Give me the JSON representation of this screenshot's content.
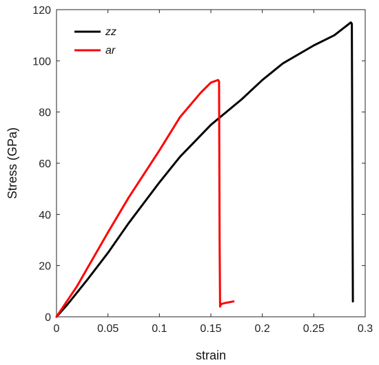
{
  "chart_data": {
    "type": "line",
    "title": "",
    "xlabel": "strain",
    "ylabel": "Stress (GPa)",
    "xlim": [
      0,
      0.3
    ],
    "ylim": [
      0,
      120
    ],
    "x_ticks": [
      0,
      0.05,
      0.1,
      0.15,
      0.2,
      0.25,
      0.3
    ],
    "x_tick_labels": [
      "0",
      "0.05",
      "0.1",
      "0.15",
      "0.2",
      "0.25",
      "0.3"
    ],
    "y_ticks": [
      0,
      20,
      40,
      60,
      80,
      100,
      120
    ],
    "y_tick_labels": [
      "0",
      "20",
      "40",
      "60",
      "80",
      "100",
      "120"
    ],
    "grid": false,
    "legend_position": "top-left",
    "series": [
      {
        "name": "zz",
        "color": "#000000",
        "x": [
          0,
          0.01,
          0.02,
          0.03,
          0.05,
          0.07,
          0.1,
          0.12,
          0.15,
          0.18,
          0.2,
          0.22,
          0.25,
          0.27,
          0.286,
          0.287,
          0.2875,
          0.288
        ],
        "y": [
          0,
          4.5,
          9.5,
          14.5,
          25,
          36.5,
          52.5,
          62.5,
          75,
          85,
          92.5,
          99,
          106,
          110,
          115,
          114.5,
          60,
          6
        ]
      },
      {
        "name": "ar",
        "color": "#ff0000",
        "x": [
          0,
          0.01,
          0.02,
          0.03,
          0.05,
          0.07,
          0.1,
          0.12,
          0.14,
          0.15,
          0.157,
          0.158,
          0.1585,
          0.159,
          0.16,
          0.165,
          0.172
        ],
        "y": [
          0,
          6,
          12,
          19,
          33,
          46.5,
          65,
          78,
          87.5,
          91.5,
          92.5,
          92,
          30,
          4,
          5,
          5.5,
          6
        ]
      }
    ]
  }
}
